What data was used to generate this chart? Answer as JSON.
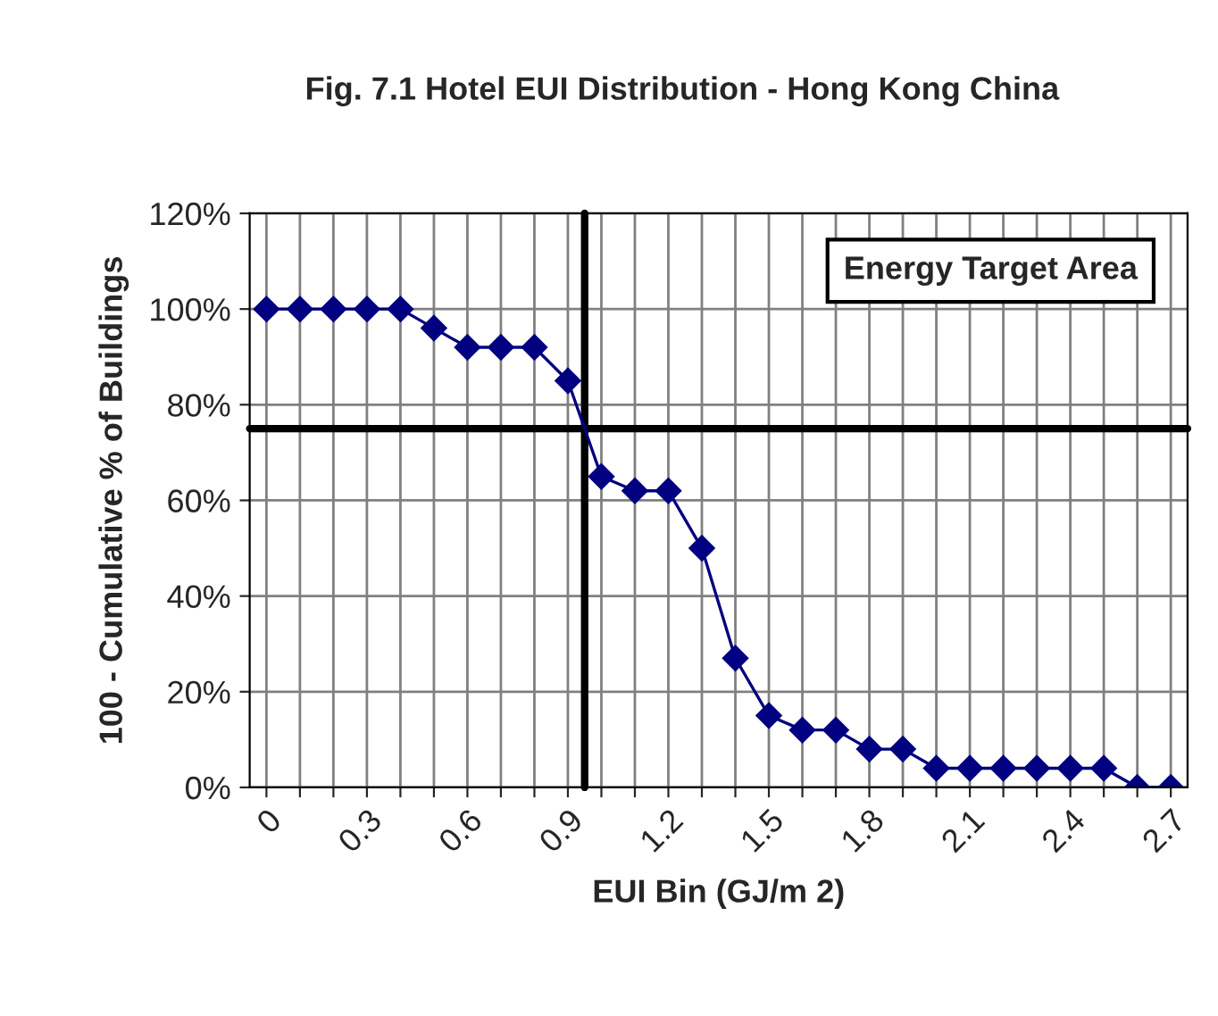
{
  "chart_data": {
    "type": "line",
    "title": "Fig. 7.1 Hotel EUI Distribution - Hong Kong China",
    "xlabel": "EUI Bin (GJ/m 2)",
    "ylabel": "100 - Cumulative % of Buildings",
    "x": [
      0,
      0.1,
      0.2,
      0.3,
      0.4,
      0.5,
      0.6,
      0.7,
      0.8,
      0.9,
      1.0,
      1.1,
      1.2,
      1.3,
      1.4,
      1.5,
      1.6,
      1.7,
      1.8,
      1.9,
      2.0,
      2.1,
      2.2,
      2.3,
      2.4,
      2.5,
      2.6,
      2.7
    ],
    "series": [
      {
        "color": "#000080",
        "values": [
          100,
          100,
          100,
          100,
          100,
          96,
          92,
          92,
          92,
          85,
          65,
          62,
          62,
          50,
          27,
          15,
          12,
          12,
          8,
          8,
          4,
          4,
          4,
          4,
          4,
          4,
          0,
          0
        ]
      }
    ],
    "xlim": [
      -0.05,
      2.75
    ],
    "xticks": [
      {
        "value": 0,
        "label": "0"
      },
      {
        "value": 0.1,
        "label": null
      },
      {
        "value": 0.2,
        "label": null
      },
      {
        "value": 0.3,
        "label": "0.3"
      },
      {
        "value": 0.4,
        "label": null
      },
      {
        "value": 0.5,
        "label": null
      },
      {
        "value": 0.6,
        "label": "0.6"
      },
      {
        "value": 0.7,
        "label": null
      },
      {
        "value": 0.8,
        "label": null
      },
      {
        "value": 0.9,
        "label": "0.9"
      },
      {
        "value": 1.0,
        "label": null
      },
      {
        "value": 1.1,
        "label": null
      },
      {
        "value": 1.2,
        "label": "1.2"
      },
      {
        "value": 1.3,
        "label": null
      },
      {
        "value": 1.4,
        "label": null
      },
      {
        "value": 1.5,
        "label": "1.5"
      },
      {
        "value": 1.6,
        "label": null
      },
      {
        "value": 1.7,
        "label": null
      },
      {
        "value": 1.8,
        "label": "1.8"
      },
      {
        "value": 1.9,
        "label": null
      },
      {
        "value": 2.0,
        "label": null
      },
      {
        "value": 2.1,
        "label": "2.1"
      },
      {
        "value": 2.2,
        "label": null
      },
      {
        "value": 2.3,
        "label": null
      },
      {
        "value": 2.4,
        "label": "2.4"
      },
      {
        "value": 2.5,
        "label": null
      },
      {
        "value": 2.6,
        "label": null
      },
      {
        "value": 2.7,
        "label": "2.7"
      }
    ],
    "ylim": [
      0,
      120
    ],
    "yticks": [
      {
        "value": 0,
        "label": "0%"
      },
      {
        "value": 20,
        "label": "20%"
      },
      {
        "value": 40,
        "label": "40%"
      },
      {
        "value": 60,
        "label": "60%"
      },
      {
        "value": 80,
        "label": "80%"
      },
      {
        "value": 100,
        "label": "100%"
      },
      {
        "value": 120,
        "label": "120%"
      }
    ],
    "ref_lines": [
      {
        "axis": "y",
        "value": 75,
        "color": "#000000"
      },
      {
        "axis": "x",
        "value": 0.95,
        "color": "#000000"
      }
    ],
    "annotations": [
      "Energy Target Area"
    ],
    "grid": true,
    "marker": "diamond",
    "line_style": "solid"
  }
}
